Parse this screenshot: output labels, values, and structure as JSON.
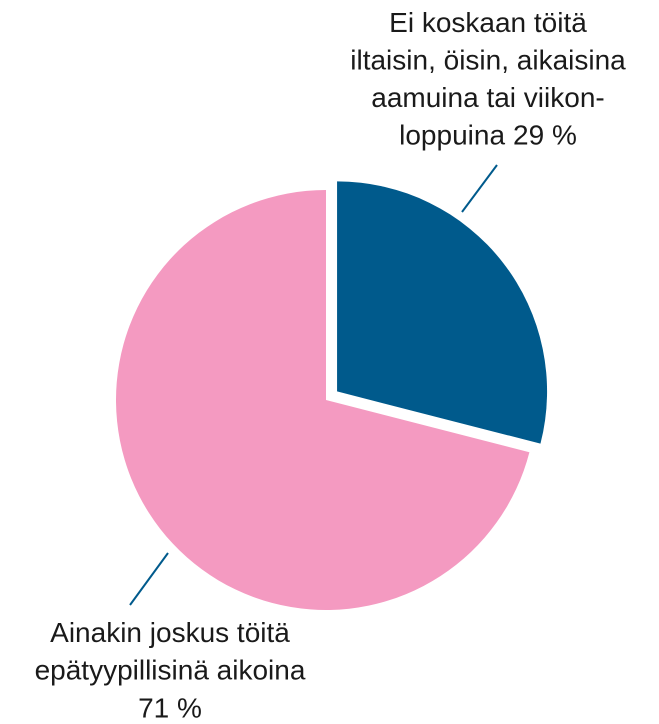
{
  "chart_data": {
    "type": "pie",
    "categories": [
      [
        "Ei koskaan töitä",
        "iltaisin, öisin, aikaisina",
        "aamuina tai viikon-",
        "loppuina"
      ],
      [
        "Ainakin joskus töitä",
        "epätyypillisinä aikoina"
      ]
    ],
    "values": [
      29,
      71
    ],
    "value_labels": [
      "29 %",
      "71 %"
    ],
    "colors": [
      "#005a8c",
      "#f49ac1"
    ]
  }
}
